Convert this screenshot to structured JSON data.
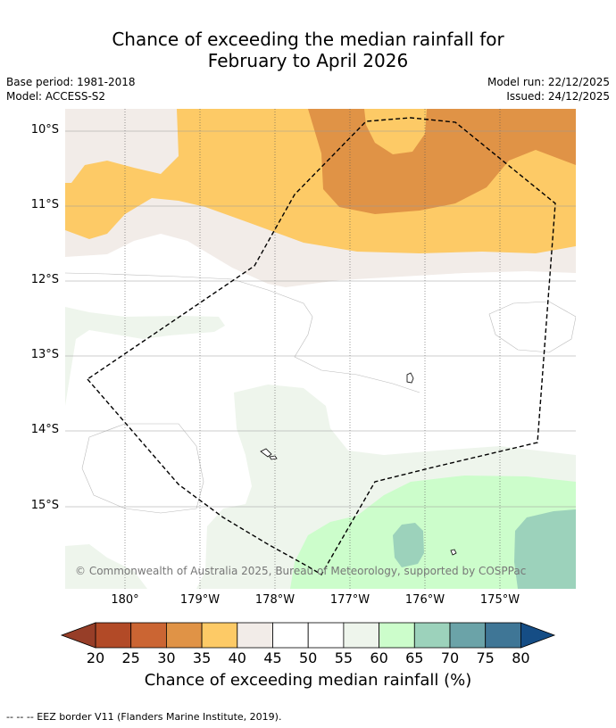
{
  "title": {
    "line1": "Chance of exceeding the median rainfall for",
    "line2": "February to April 2026"
  },
  "meta": {
    "base_period": "Base period: 1981-2018",
    "model": "Model: ACCESS-S2",
    "model_run": "Model run: 22/12/2025",
    "issued": "Issued: 24/12/2025"
  },
  "map": {
    "lat_labels": [
      "10°S",
      "11°S",
      "12°S",
      "13°S",
      "14°S",
      "15°S"
    ],
    "lon_labels": [
      "180°",
      "179°W",
      "178°W",
      "177°W",
      "176°W",
      "175°W"
    ],
    "copyright": "© Commonwealth of Australia 2025, Bureau of Meteorology, supported by COSPPac"
  },
  "colorbar": {
    "ticks": [
      "20",
      "25",
      "30",
      "35",
      "40",
      "45",
      "50",
      "55",
      "60",
      "65",
      "70",
      "75",
      "80"
    ],
    "colors": [
      "#b24a27",
      "#cb6533",
      "#e09346",
      "#fdca66",
      "#f2ece8",
      "#ffffff",
      "#ffffff",
      "#eef5ec",
      "#ccfdcb",
      "#9cd2bb",
      "#6ba3a8",
      "#3f7696"
    ],
    "under_color": "#973e28",
    "over_color": "#154d85",
    "label": "Chance of exceeding median rainfall (%)"
  },
  "footnote": "--  --  -- EEZ border V11 (Flanders Marine Institute, 2019)."
}
